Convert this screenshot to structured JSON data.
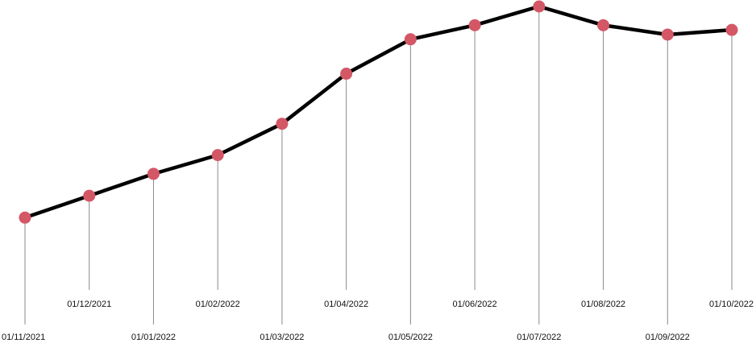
{
  "chart_data": {
    "type": "line",
    "title": "",
    "xlabel": "",
    "ylabel": "",
    "x": [
      "01/11/2021",
      "01/12/2021",
      "01/01/2022",
      "01/02/2022",
      "01/03/2022",
      "01/04/2022",
      "01/05/2022",
      "01/06/2022",
      "01/07/2022",
      "01/08/2022",
      "01/09/2022",
      "01/10/2022"
    ],
    "series": [
      {
        "values": [
          20,
          27,
          34,
          40,
          50,
          66,
          77,
          81.5,
          87.5,
          81.5,
          78.5,
          80
        ]
      }
    ],
    "ylim": [
      0,
      90
    ],
    "grid": false,
    "legend": "none",
    "colors": {
      "line": "#000000",
      "marker": "#d45766",
      "stem": "#8a8a8a"
    }
  }
}
